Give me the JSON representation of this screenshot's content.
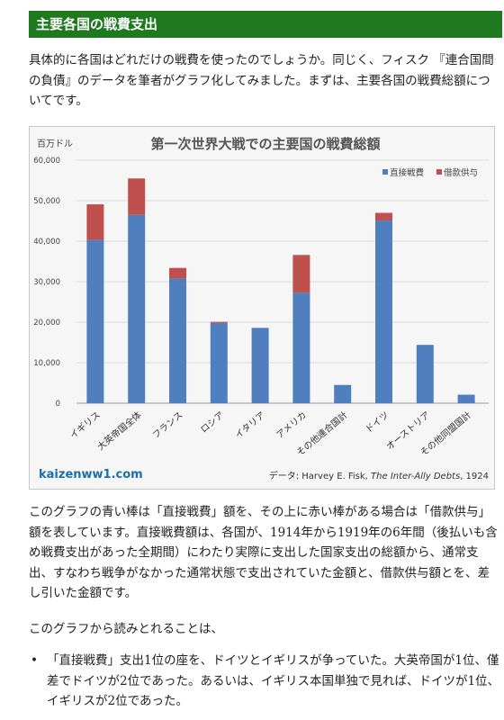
{
  "header": {
    "title": "主要各国の戦費支出"
  },
  "paragraph1": "具体的に各国はどれだけの戦費を使ったのでしょうか。同じく、フィスク 『連合国間の負債』のデータを筆者がグラフ化してみました。まずは、主要各国の戦費総額についてです。",
  "figure": {
    "site_label": "kaizenww1.com",
    "source_prefix": "データ: Harvey E. Fisk, ",
    "source_title": "The Inter-Ally Debts",
    "source_suffix": ", 1924"
  },
  "chart_data": {
    "type": "bar",
    "stacked": true,
    "title": "第一次世界大戦での主要国の戦費総額",
    "ylabel": "百万ドル",
    "ylim": [
      0,
      60000
    ],
    "yticks": [
      "0",
      "10,000",
      "20,000",
      "30,000",
      "40,000",
      "50,000",
      "60,000"
    ],
    "categories": [
      "イギリス",
      "大英帝国全体",
      "フランス",
      "ロシア",
      "イタリア",
      "アメリカ",
      "その他連合国計",
      "ドイツ",
      "オーストリア",
      "その他同盟国計"
    ],
    "series": [
      {
        "name": "直接戦費",
        "color": "#4f7fbf",
        "values": [
          40300,
          46500,
          30800,
          19800,
          18600,
          27300,
          4500,
          45100,
          14400,
          2100
        ]
      },
      {
        "name": "借款供与",
        "color": "#c0504d",
        "values": [
          8800,
          9000,
          2600,
          300,
          0,
          9300,
          0,
          1900,
          0,
          0
        ]
      }
    ],
    "legend_position": "top-right",
    "grid": true
  },
  "paragraph2": "このグラフの青い棒は「直接戦費」額を、その上に赤い棒がある場合は「借款供与」額を表しています。直接戦費額は、各国が、1914年から1919年の6年間（後払いも含め戦費支出があった全期間）にわたり実際に支出した国家支出の総額から、通常支出、すなわち戦争がなかった通常状態で支出されていた金額と、借款供与額とを、差し引いた金額です。",
  "paragraph3": "このグラフから読みとれることは、",
  "bullets": [
    "「直接戦費」支出1位の座を、ドイツとイギリスが争っていた。大英帝国が1位、僅差でドイツが2位であった。あるいは、イギリス本国単独で見れば、ドイツが1位、イギリスが2位であった。"
  ],
  "bullet_symbol": "•"
}
